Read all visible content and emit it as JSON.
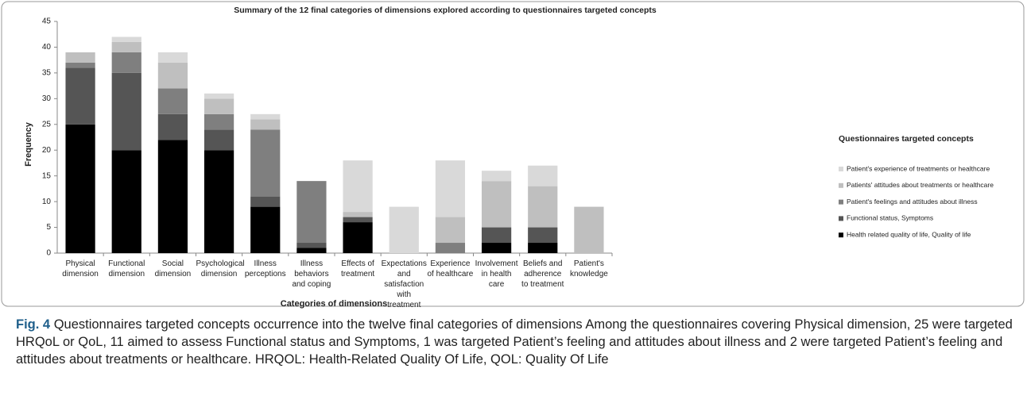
{
  "chart_data": {
    "type": "stacked_bar",
    "title": "Summary of the 12 final categories of dimensions explored according to questionnaires targeted concepts",
    "x_label": "Categories of dimensions",
    "y_label": "Frequency",
    "legend_title": "Questionnaires targeted concepts",
    "categories": [
      "Physical dimension",
      "Functional dimension",
      "Social dimension",
      "Psychological dimension",
      "Illness perceptions",
      "Illness behaviors and coping",
      "Effects of treatment",
      "Expectations and satisfaction with treatment",
      "Experience of healthcare",
      "Involvement in health care",
      "Beliefs and adherence to treatment",
      "Patient's knowledge"
    ],
    "series": [
      {
        "name": "Health related quality of life, Quality of life",
        "color": "#000000",
        "values": [
          25,
          20,
          22,
          20,
          9,
          1,
          6,
          0,
          0,
          2,
          2,
          0
        ]
      },
      {
        "name": "Functional status, Symptoms",
        "color": "#555555",
        "values": [
          11,
          15,
          5,
          4,
          2,
          1,
          1,
          0,
          0,
          3,
          3,
          0
        ]
      },
      {
        "name": "Patient's feelings and attitudes about illness",
        "color": "#7f7f7f",
        "values": [
          1,
          4,
          5,
          3,
          13,
          12,
          0,
          0,
          2,
          0,
          0,
          0
        ]
      },
      {
        "name": "Patients' attitudes about treatments or healthcare",
        "color": "#bfbfbf",
        "values": [
          2,
          2,
          5,
          3,
          2,
          0,
          1,
          0,
          5,
          9,
          8,
          9
        ]
      },
      {
        "name": "Patient's experience  of treatments or healthcare",
        "color": "#d9d9d9",
        "values": [
          0,
          1,
          2,
          1,
          1,
          0,
          10,
          9,
          11,
          2,
          4,
          0
        ]
      }
    ],
    "ylim": [
      0,
      45
    ],
    "yticks": [
      0,
      5,
      10,
      15,
      20,
      25,
      30,
      35,
      40,
      45
    ],
    "grid": false,
    "legend": "right"
  },
  "caption": {
    "label": "Fig. 4",
    "text": "Questionnaires targeted concepts occurrence into the twelve final categories of dimensions Among the questionnaires covering Physical dimension, 25 were targeted HRQoL or QoL, 11 aimed to assess Functional status and Symptoms, 1 was targeted Patient’s feeling and attitudes about illness and 2 were targeted Patient’s feeling and attitudes about treatments or healthcare. HRQOL: Health-Related Quality Of Life, QOL: Quality Of Life"
  }
}
